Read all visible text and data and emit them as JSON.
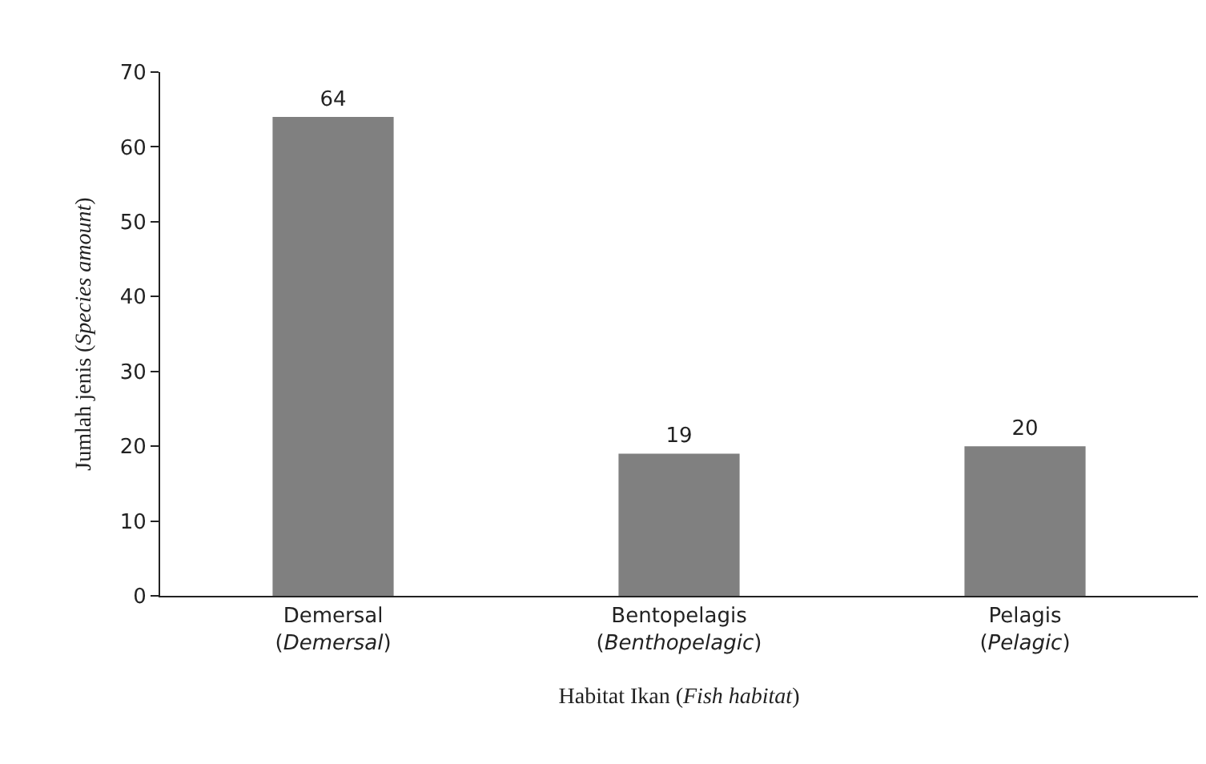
{
  "chart_data": {
    "type": "bar",
    "xlabel": "Habitat Ikan (Fish habitat)",
    "ylabel": "Jumlah jenis (Species amount)",
    "categories": [
      "Demersal\n(Demersal)",
      "Bentopelagis\n(Benthopelagic)",
      "Pelagis\n(Pelagic)"
    ],
    "values": [
      64,
      19,
      20
    ],
    "color": "#808080",
    "data_labels": true,
    "ylim": [
      0,
      70
    ],
    "yticks": [
      0,
      10,
      20,
      30,
      40,
      50,
      60,
      70
    ],
    "grid": false
  }
}
